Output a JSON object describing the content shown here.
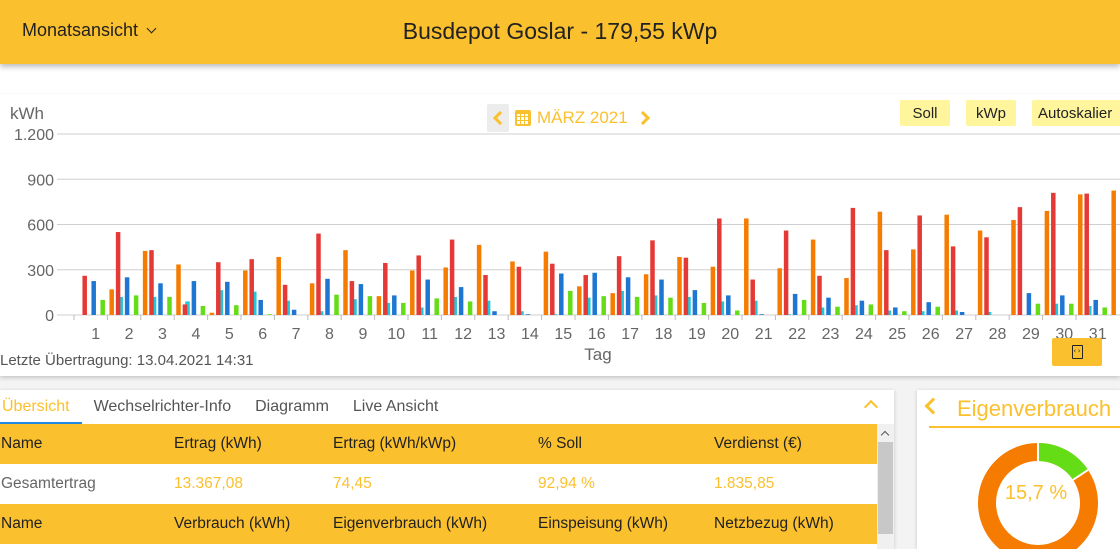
{
  "header": {
    "view_selector": "Monatsansicht",
    "title": "Busdepot Goslar - 179,55 kWp"
  },
  "chart_toolbar": {
    "unit": "kWh",
    "month": "MÄRZ 2021",
    "buttons": [
      "Soll",
      "kWp",
      "Autoskalier"
    ]
  },
  "chart_data": {
    "type": "bar",
    "title": "MÄRZ 2021",
    "xlabel": "Tag",
    "ylabel": "kWh",
    "ylim": [
      0,
      1200
    ],
    "yticks": [
      "0",
      "300",
      "600",
      "900",
      "1.200"
    ],
    "grid": true,
    "categories": [
      "1",
      "2",
      "3",
      "4",
      "5",
      "6",
      "7",
      "8",
      "9",
      "10",
      "11",
      "12",
      "13",
      "14",
      "15",
      "16",
      "17",
      "18",
      "19",
      "20",
      "21",
      "22",
      "23",
      "24",
      "25",
      "26",
      "27",
      "28",
      "29",
      "30",
      "31"
    ],
    "series": [
      {
        "name": "red",
        "color": "#e53935",
        "values": [
          260,
          550,
          430,
          70,
          350,
          370,
          200,
          540,
          225,
          345,
          395,
          500,
          265,
          320,
          340,
          265,
          390,
          495,
          380,
          640,
          235,
          560,
          260,
          710,
          430,
          660,
          455,
          515,
          715,
          810,
          805
        ]
      },
      {
        "name": "blue",
        "color": "#1e76d2",
        "values": [
          225,
          250,
          210,
          225,
          220,
          100,
          35,
          240,
          205,
          130,
          235,
          185,
          25,
          5,
          275,
          280,
          250,
          235,
          165,
          130,
          5,
          140,
          115,
          95,
          50,
          85,
          20,
          0,
          145,
          130,
          100
        ]
      },
      {
        "name": "green",
        "color": "#64dd17",
        "values": [
          100,
          130,
          120,
          60,
          65,
          5,
          0,
          135,
          125,
          80,
          110,
          90,
          0,
          0,
          160,
          125,
          120,
          115,
          80,
          30,
          0,
          100,
          55,
          70,
          25,
          55,
          0,
          0,
          75,
          75,
          50
        ]
      },
      {
        "name": "orange",
        "color": "#f57c00",
        "values": [
          170,
          425,
          335,
          15,
          295,
          385,
          210,
          430,
          125,
          295,
          315,
          465,
          355,
          420,
          190,
          145,
          270,
          385,
          320,
          640,
          310,
          500,
          245,
          685,
          435,
          665,
          560,
          630,
          690,
          800,
          825
        ]
      },
      {
        "name": "cyan",
        "color": "#26c6da",
        "values": [
          120,
          120,
          90,
          165,
          155,
          95,
          25,
          105,
          80,
          50,
          120,
          95,
          25,
          5,
          115,
          160,
          130,
          120,
          90,
          95,
          5,
          50,
          65,
          30,
          25,
          30,
          20,
          0,
          75,
          60,
          55
        ]
      }
    ]
  },
  "chart_footer": {
    "last_transfer": "Letzte Übertragung: 13.04.2021 14:31",
    "export_icon": "file-code-icon"
  },
  "tabs": [
    {
      "label": "Übersicht",
      "active": true
    },
    {
      "label": "Wechselrichter-Info",
      "active": false
    },
    {
      "label": "Diagramm",
      "active": false
    },
    {
      "label": "Live Ansicht",
      "active": false
    }
  ],
  "table": {
    "header1": [
      "Name",
      "Ertrag (kWh)",
      "Ertrag (kWh/kWp)",
      "% Soll",
      "Verdienst (€)"
    ],
    "row1": [
      "Gesamtertrag",
      "13.367,08",
      "74,45",
      "92,94 %",
      "1.835,85"
    ],
    "header2": [
      "Name",
      "Verbrauch (kWh)",
      "Eigenverbrauch (kWh)",
      "Einspeisung (kWh)",
      "Netzbezug (kWh)"
    ]
  },
  "donut": {
    "title": "Eigenverbrauch",
    "percent_label": "15,7 %",
    "percent": 15.7,
    "colors": {
      "self": "#64dd17",
      "rest": "#f57c00"
    }
  }
}
